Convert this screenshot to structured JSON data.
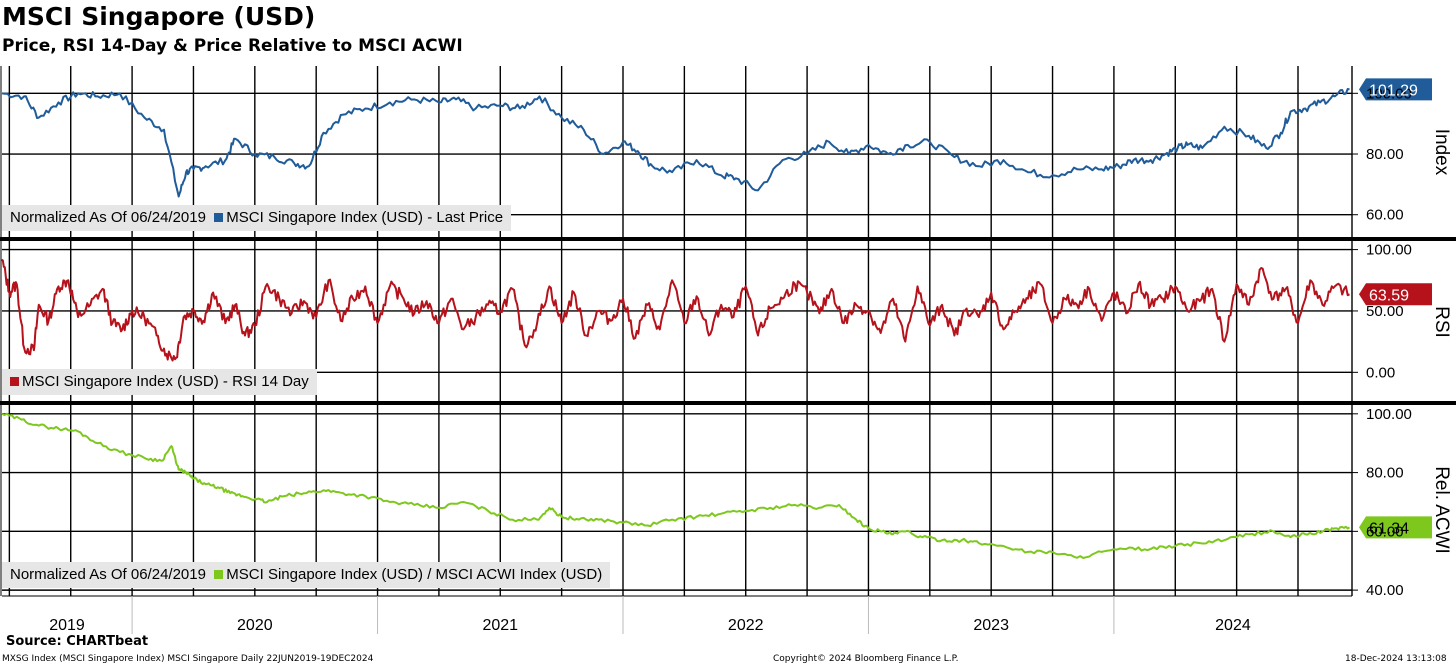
{
  "header": {
    "title": "MSCI Singapore (USD)",
    "subtitle": "Price, RSI 14-Day & Price Relative to MSCI ACWI"
  },
  "footer": {
    "source": "Source: CHARTbeat",
    "left": "MXSG Index (MSCI Singapore Index) MSCI Singapore  Daily 22JUN2019-19DEC2024",
    "center": "Copyright© 2024 Bloomberg Finance L.P.",
    "right": "18-Dec-2024 13:13:08"
  },
  "colors": {
    "price": "#1f5c99",
    "rsi": "#b5121b",
    "relative": "#7ec81e"
  },
  "chart_data": [
    {
      "type": "line",
      "title": "MSCI Singapore Index (USD) - Last Price",
      "ylabel": "Index",
      "note": "Normalized As Of 06/24/2019",
      "legend": "MSCI Singapore Index (USD) - Last Price",
      "ylim": [
        52,
        109
      ],
      "yticks": [
        60,
        80,
        100
      ],
      "ytick_labels": [
        "60.00",
        "80.00",
        "100.00"
      ],
      "last_value": 101.29,
      "last_label": "101.29",
      "x": [
        2019.47,
        2019.56,
        2019.62,
        2019.7,
        2019.78,
        2019.86,
        2019.95,
        2020.05,
        2020.13,
        2020.19,
        2020.22,
        2020.25,
        2020.3,
        2020.38,
        2020.42,
        2020.5,
        2020.58,
        2020.66,
        2020.72,
        2020.78,
        2020.86,
        2020.95,
        2021.05,
        2021.15,
        2021.25,
        2021.32,
        2021.4,
        2021.5,
        2021.58,
        2021.66,
        2021.75,
        2021.84,
        2021.92,
        2022.0,
        2022.06,
        2022.12,
        2022.2,
        2022.3,
        2022.4,
        2022.46,
        2022.55,
        2022.65,
        2022.75,
        2022.84,
        2022.92,
        2023.0,
        2023.08,
        2023.16,
        2023.25,
        2023.35,
        2023.45,
        2023.55,
        2023.65,
        2023.75,
        2023.85,
        2023.95,
        2024.02,
        2024.08,
        2024.15,
        2024.21,
        2024.26,
        2024.3,
        2024.36,
        2024.45,
        2024.55,
        2024.62,
        2024.68,
        2024.72,
        2024.78,
        2024.84,
        2024.9,
        2024.96
      ],
      "y": [
        100,
        99,
        92,
        97,
        100,
        99,
        100,
        92,
        88,
        66,
        74,
        75,
        76,
        78,
        85,
        80,
        79,
        77,
        76,
        87,
        93,
        95,
        97,
        98,
        97,
        98,
        95,
        96,
        95,
        99,
        92,
        88,
        80,
        84,
        81,
        76,
        74,
        78,
        73,
        72,
        68,
        78,
        80,
        84,
        80,
        83,
        80,
        83,
        84,
        79,
        76,
        78,
        74,
        73,
        75,
        75,
        76,
        78,
        78,
        80,
        82,
        83,
        82,
        89,
        86,
        82,
        87,
        94,
        95,
        97,
        99,
        101.29
      ]
    },
    {
      "type": "line",
      "title": "MSCI Singapore Index (USD) - RSI 14 Day",
      "ylabel": "RSI",
      "legend": "MSCI Singapore Index (USD) - RSI 14 Day",
      "ylim": [
        -25,
        107
      ],
      "yticks": [
        0,
        50,
        100
      ],
      "ytick_labels": [
        "0.00",
        "50.00",
        "100.00"
      ],
      "last_value": 63.59,
      "last_label": "63.59",
      "x": [
        2019.47,
        2019.5,
        2019.53,
        2019.56,
        2019.6,
        2019.62,
        2019.66,
        2019.7,
        2019.74,
        2019.78,
        2019.83,
        2019.88,
        2019.92,
        2019.96,
        2020.0,
        2020.05,
        2020.1,
        2020.14,
        2020.18,
        2020.21,
        2020.25,
        2020.29,
        2020.33,
        2020.38,
        2020.42,
        2020.46,
        2020.5,
        2020.55,
        2020.6,
        2020.65,
        2020.7,
        2020.75,
        2020.8,
        2020.85,
        2020.9,
        2020.95,
        2021.0,
        2021.05,
        2021.1,
        2021.15,
        2021.2,
        2021.25,
        2021.3,
        2021.35,
        2021.4,
        2021.45,
        2021.5,
        2021.55,
        2021.6,
        2021.65,
        2021.7,
        2021.75,
        2021.8,
        2021.85,
        2021.9,
        2021.95,
        2022.0,
        2022.05,
        2022.1,
        2022.15,
        2022.2,
        2022.25,
        2022.3,
        2022.35,
        2022.4,
        2022.45,
        2022.5,
        2022.55,
        2022.6,
        2022.65,
        2022.7,
        2022.75,
        2022.8,
        2022.85,
        2022.9,
        2022.95,
        2023.0,
        2023.05,
        2023.1,
        2023.15,
        2023.2,
        2023.25,
        2023.3,
        2023.35,
        2023.4,
        2023.45,
        2023.5,
        2023.55,
        2023.6,
        2023.65,
        2023.7,
        2023.75,
        2023.8,
        2023.85,
        2023.9,
        2023.95,
        2024.0,
        2024.05,
        2024.1,
        2024.15,
        2024.2,
        2024.25,
        2024.3,
        2024.35,
        2024.4,
        2024.45,
        2024.5,
        2024.55,
        2024.6,
        2024.65,
        2024.7,
        2024.75,
        2024.8,
        2024.85,
        2024.9,
        2024.96
      ],
      "y": [
        92,
        65,
        72,
        20,
        18,
        55,
        42,
        70,
        75,
        45,
        55,
        68,
        40,
        35,
        50,
        45,
        30,
        15,
        12,
        45,
        50,
        42,
        65,
        40,
        55,
        30,
        38,
        72,
        60,
        48,
        58,
        45,
        75,
        42,
        60,
        70,
        40,
        70,
        62,
        48,
        58,
        40,
        60,
        35,
        45,
        55,
        50,
        68,
        22,
        40,
        70,
        40,
        65,
        30,
        50,
        42,
        60,
        28,
        55,
        35,
        75,
        40,
        62,
        30,
        55,
        45,
        70,
        30,
        52,
        60,
        72,
        65,
        48,
        68,
        40,
        55,
        50,
        32,
        60,
        25,
        70,
        38,
        55,
        30,
        52,
        45,
        65,
        35,
        50,
        60,
        72,
        40,
        60,
        55,
        68,
        42,
        65,
        48,
        72,
        55,
        60,
        70,
        50,
        58,
        68,
        25,
        72,
        55,
        85,
        60,
        68,
        40,
        75,
        55,
        70,
        63.59
      ]
    },
    {
      "type": "line",
      "title": "MSCI Singapore Index (USD) / MSCI ACWI Index (USD)",
      "ylabel": "Rel. ACWI",
      "note": "Normalized As Of 06/24/2019",
      "legend": "MSCI Singapore Index (USD) / MSCI ACWI Index (USD)",
      "ylim": [
        38,
        103
      ],
      "yticks": [
        40,
        60,
        80,
        100
      ],
      "ytick_labels": [
        "40.00",
        "60.00",
        "80.00",
        "100.00"
      ],
      "last_value": 61.34,
      "last_label": "61.34",
      "x": [
        2019.47,
        2019.55,
        2019.62,
        2019.7,
        2019.78,
        2019.86,
        2019.95,
        2020.05,
        2020.12,
        2020.16,
        2020.19,
        2020.22,
        2020.25,
        2020.3,
        2020.35,
        2020.4,
        2020.45,
        2020.5,
        2020.55,
        2020.62,
        2020.7,
        2020.78,
        2020.86,
        2020.95,
        2021.05,
        2021.15,
        2021.25,
        2021.35,
        2021.45,
        2021.55,
        2021.65,
        2021.7,
        2021.75,
        2021.82,
        2021.9,
        2022.0,
        2022.1,
        2022.2,
        2022.3,
        2022.4,
        2022.5,
        2022.6,
        2022.7,
        2022.8,
        2022.88,
        2022.95,
        2023.0,
        2023.05,
        2023.1,
        2023.15,
        2023.22,
        2023.3,
        2023.38,
        2023.45,
        2023.55,
        2023.65,
        2023.75,
        2023.85,
        2023.95,
        2024.05,
        2024.15,
        2024.25,
        2024.35,
        2024.45,
        2024.55,
        2024.65,
        2024.72,
        2024.78,
        2024.85,
        2024.9,
        2024.96
      ],
      "y": [
        100,
        98,
        96,
        95,
        94,
        90,
        87,
        85,
        84,
        89,
        81,
        80,
        78,
        76,
        75,
        73,
        72,
        71,
        70,
        72,
        73,
        74,
        73,
        72,
        70,
        69,
        68,
        70,
        67,
        64,
        64,
        68,
        65,
        64,
        64,
        63,
        62,
        64,
        65,
        66,
        67,
        68,
        69,
        68,
        69,
        64,
        61,
        60,
        59,
        60,
        58,
        57,
        57,
        56,
        55,
        53,
        53,
        51,
        53,
        54,
        54,
        55,
        56,
        57,
        59,
        60,
        58,
        59,
        60,
        61,
        61.34
      ]
    }
  ],
  "x_axis": {
    "year_labels": [
      "2019",
      "2020",
      "2021",
      "2022",
      "2023",
      "2024"
    ]
  }
}
